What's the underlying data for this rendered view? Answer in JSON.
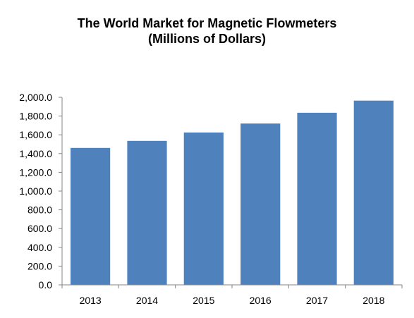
{
  "chart_data": {
    "type": "bar",
    "title_lines": [
      "The World Market for Magnetic Flowmeters",
      "(Millions of Dollars)"
    ],
    "categories": [
      "2013",
      "2014",
      "2015",
      "2016",
      "2017",
      "2018"
    ],
    "values": [
      1460,
      1535,
      1625,
      1720,
      1835,
      1965
    ],
    "ylim": [
      0,
      2000
    ],
    "yticks": [
      "0.0",
      "200.0",
      "400.0",
      "600.0",
      "800.0",
      "1,000.0",
      "1,200.0",
      "1,400.0",
      "1,600.0",
      "1,800.0",
      "2,000.0"
    ],
    "grid": false,
    "legend": "none",
    "bar_color": "#4f81bd",
    "axis_color": "#868686"
  }
}
